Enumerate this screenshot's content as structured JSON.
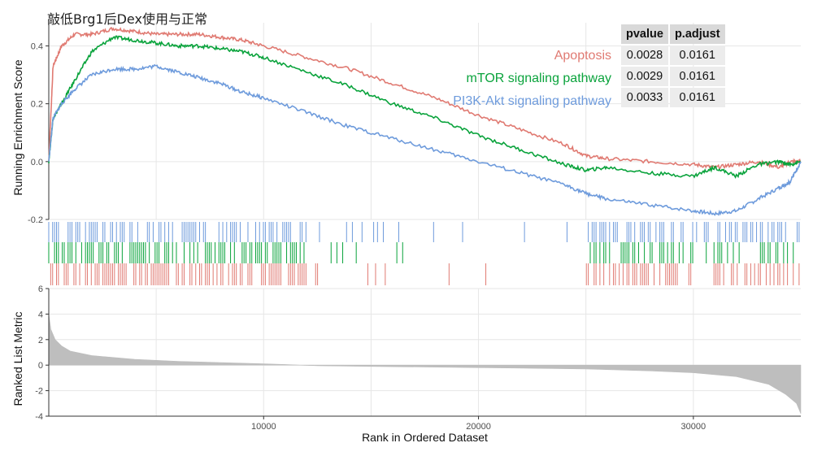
{
  "title": "敲低Brg1后Dex使用与正常",
  "colors": {
    "apoptosis": "#E07A72",
    "mtor": "#0AA33C",
    "pi3k": "#6E9BDC",
    "metric": "#BEBEBE",
    "grid": "#E6E6E6"
  },
  "table": {
    "headers": [
      "pvalue",
      "p.adjust"
    ],
    "rows": [
      {
        "name": "Apoptosis",
        "pvalue": "0.0028",
        "padjust": "0.0161"
      },
      {
        "name": "mTOR signaling pathway",
        "pvalue": "0.0029",
        "padjust": "0.0161"
      },
      {
        "name": "PI3K-Akt signaling pathway",
        "pvalue": "0.0033",
        "padjust": "0.0161"
      }
    ]
  },
  "chart_data": [
    {
      "type": "line",
      "ylabel": "Running Enrichment Score",
      "xlim": [
        1,
        35000
      ],
      "ylim": [
        -0.2,
        0.48
      ],
      "yticks": [
        "-0.2",
        "0.0",
        "0.2",
        "0.4"
      ],
      "series": [
        {
          "name": "Apoptosis",
          "x": [
            0,
            200,
            600,
            1200,
            2000,
            3000,
            4000,
            5000,
            6000,
            7000,
            8000,
            9000,
            10000,
            12000,
            14000,
            16000,
            18000,
            20000,
            22000,
            24000,
            25000,
            26000,
            28000,
            30000,
            31000,
            32000,
            33000,
            34000,
            34500,
            35000
          ],
          "y": [
            0.0,
            0.33,
            0.4,
            0.44,
            0.44,
            0.46,
            0.45,
            0.44,
            0.44,
            0.44,
            0.43,
            0.42,
            0.4,
            0.36,
            0.32,
            0.27,
            0.22,
            0.16,
            0.11,
            0.06,
            0.02,
            0.01,
            0.0,
            -0.01,
            -0.02,
            -0.01,
            0.0,
            -0.02,
            0.0,
            0.0
          ]
        },
        {
          "name": "mTOR signaling pathway",
          "x": [
            0,
            200,
            600,
            1200,
            2000,
            3000,
            4000,
            5000,
            6000,
            7000,
            8000,
            9000,
            10000,
            12000,
            14000,
            16000,
            18000,
            20000,
            22000,
            24000,
            25000,
            26000,
            28000,
            30000,
            31000,
            32000,
            33000,
            34000,
            34500,
            35000
          ],
          "y": [
            0.0,
            0.15,
            0.2,
            0.28,
            0.38,
            0.43,
            0.42,
            0.41,
            0.4,
            0.4,
            0.39,
            0.38,
            0.36,
            0.31,
            0.26,
            0.2,
            0.15,
            0.09,
            0.04,
            -0.01,
            -0.03,
            -0.02,
            -0.04,
            -0.05,
            -0.02,
            -0.05,
            -0.01,
            0.0,
            -0.01,
            0.0
          ]
        },
        {
          "name": "PI3K-Akt signaling pathway",
          "x": [
            0,
            200,
            600,
            1200,
            2000,
            3000,
            4000,
            5000,
            6000,
            7000,
            8000,
            9000,
            10000,
            12000,
            14000,
            16000,
            18000,
            20000,
            22000,
            24000,
            25000,
            26000,
            28000,
            30000,
            31000,
            32000,
            33000,
            34000,
            34500,
            35000
          ],
          "y": [
            0.0,
            0.15,
            0.2,
            0.25,
            0.3,
            0.32,
            0.32,
            0.33,
            0.31,
            0.29,
            0.27,
            0.24,
            0.22,
            0.17,
            0.12,
            0.08,
            0.04,
            0.0,
            -0.04,
            -0.08,
            -0.11,
            -0.13,
            -0.15,
            -0.17,
            -0.18,
            -0.17,
            -0.13,
            -0.09,
            -0.07,
            0.0
          ]
        }
      ]
    },
    {
      "type": "area",
      "xlabel": "Rank in Ordered Dataset",
      "ylabel": "Ranked List Metric",
      "xlim": [
        1,
        35000
      ],
      "ylim": [
        -4,
        6
      ],
      "xticks": [
        "10000",
        "20000",
        "30000"
      ],
      "yticks": [
        "-4",
        "-2",
        "0",
        "2",
        "4",
        "6"
      ],
      "x": [
        0,
        100,
        300,
        600,
        1000,
        2000,
        4000,
        6000,
        8000,
        10000,
        11000,
        12500,
        15000,
        20000,
        25000,
        28000,
        30000,
        32000,
        33500,
        34300,
        34800,
        35000
      ],
      "y": [
        4.0,
        2.8,
        2.0,
        1.5,
        1.1,
        0.75,
        0.45,
        0.3,
        0.2,
        0.1,
        0.05,
        -0.05,
        -0.1,
        -0.2,
        -0.3,
        -0.45,
        -0.6,
        -0.9,
        -1.5,
        -2.3,
        -3.0,
        -3.8
      ]
    }
  ]
}
